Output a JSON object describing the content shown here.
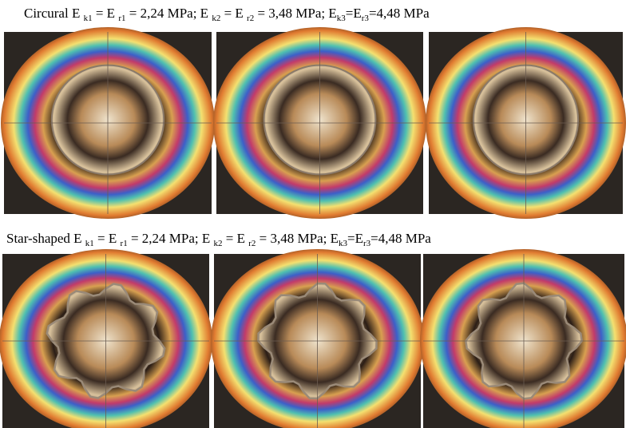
{
  "figure": {
    "rows": [
      {
        "caption": [
          {
            "text": "Circural E ",
            "sub": "k1"
          },
          {
            "text": " =  E ",
            "sub": "r1"
          },
          {
            "text": " = 2,24 MPa; E ",
            "sub": "k2"
          },
          {
            "text": " =  E ",
            "sub": "r2"
          },
          {
            "text": " = 3,48 MPa; E",
            "sub": "k3"
          },
          {
            "text": "=E",
            "sub": "r3"
          },
          {
            "text": "=4,48 MPa"
          }
        ]
      },
      {
        "caption": [
          {
            "text": "Star-shaped E ",
            "sub": "k1"
          },
          {
            "text": " =  E ",
            "sub": "r1"
          },
          {
            "text": " = 2,24 MPa; E ",
            "sub": "k2"
          },
          {
            "text": " =  E ",
            "sub": "r2"
          },
          {
            "text": " = 3,48 MPa; E",
            "sub": "k3"
          },
          {
            "text": "=E",
            "sub": "r3"
          },
          {
            "text": "=4,48 MPa"
          }
        ]
      }
    ]
  }
}
